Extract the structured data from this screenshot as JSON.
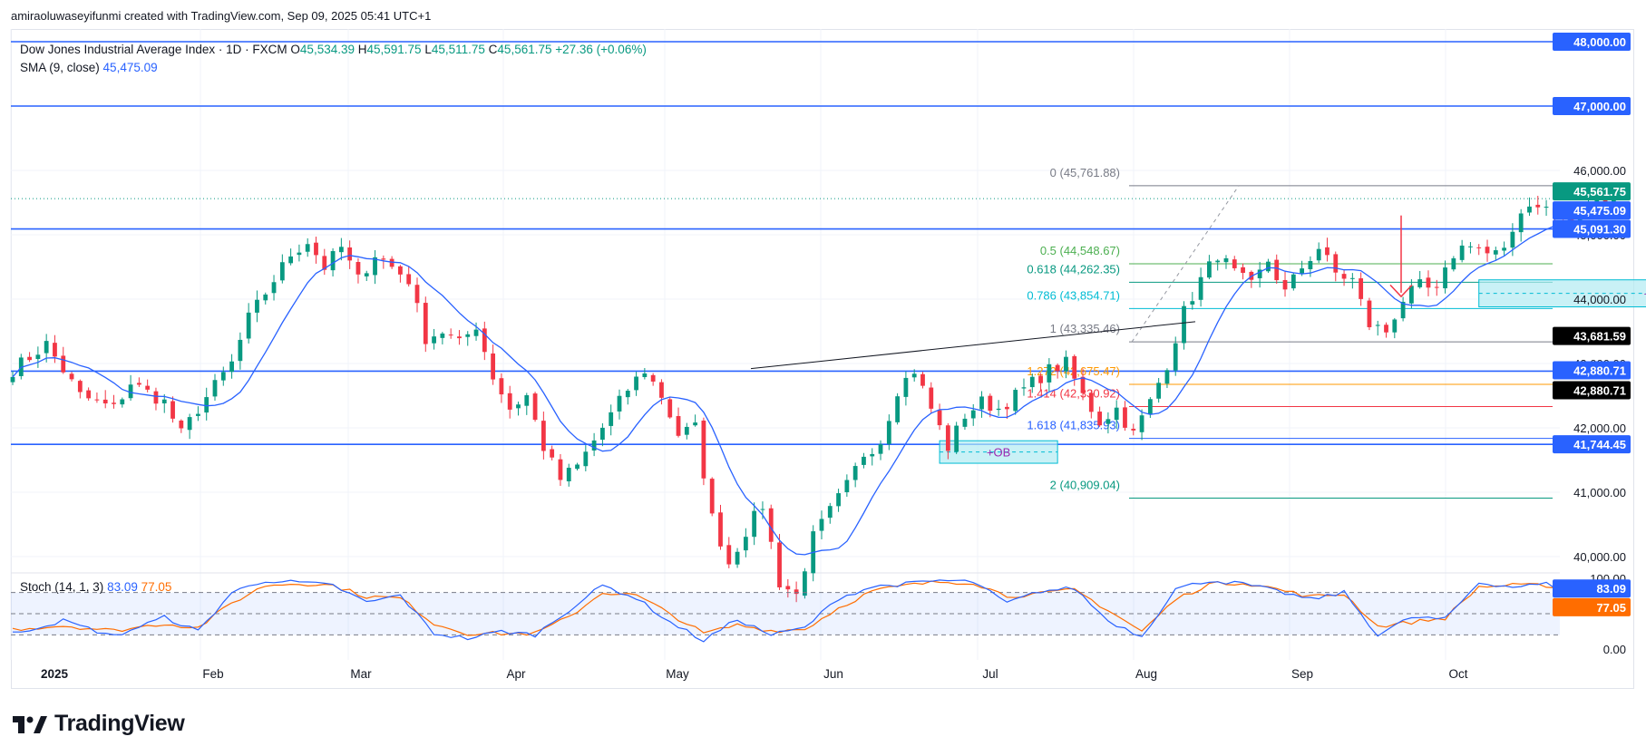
{
  "header": {
    "credit": "amiraoluwaseyifunmi created with TradingView.com, Sep 09, 2025 05:41 UTC+1"
  },
  "legend": {
    "symbol": "Dow Jones Industrial Average Index · 1D · FXCM",
    "open_label": "O",
    "open": "45,534.39",
    "high_label": "H",
    "high": "45,591.75",
    "low_label": "L",
    "low": "45,511.75",
    "close_label": "C",
    "close": "45,561.75",
    "change": "+27.36 (+0.06%)",
    "sma_label": "SMA (9, close)",
    "sma_value": "45,475.09"
  },
  "stoch_legend": {
    "label": "Stoch (14, 1, 3)",
    "k": "83.09",
    "d": "77.05"
  },
  "logo": {
    "text": "TradingView",
    "icon": "tradingview-logo-icon"
  },
  "colors": {
    "up": "#089981",
    "down": "#f23645",
    "sma": "#2962ff",
    "level": "#2962ff",
    "stoch_k": "#2962ff",
    "stoch_d": "#ff6d00",
    "ob_fill": "#b2ebf2",
    "arrow": "#f23645"
  },
  "chart_data": [
    {
      "type": "candlestick",
      "title": "Dow Jones Industrial Average Index · 1D · FXCM",
      "x_ticks": [
        "2025",
        "Feb",
        "Mar",
        "Apr",
        "May",
        "Jun",
        "Jul",
        "Aug",
        "Sep",
        "Oct"
      ],
      "y_ticks": [
        "40,000.00",
        "41,000.00",
        "42,000.00",
        "43,000.00",
        "44,000.00",
        "45,000.00",
        "46,000.00"
      ],
      "ylim": [
        39850,
        48200
      ],
      "grid": true,
      "close_path": [
        [
          0,
          42900
        ],
        [
          4,
          43300
        ],
        [
          8,
          42500
        ],
        [
          12,
          42300
        ],
        [
          14,
          42700
        ],
        [
          18,
          42400
        ],
        [
          20,
          41900
        ],
        [
          22,
          42300
        ],
        [
          26,
          43000
        ],
        [
          28,
          43700
        ],
        [
          31,
          44300
        ],
        [
          33,
          44700
        ],
        [
          35,
          44900
        ],
        [
          37,
          44500
        ],
        [
          39,
          44800
        ],
        [
          41,
          44300
        ],
        [
          43,
          44700
        ],
        [
          45,
          44500
        ],
        [
          47,
          44300
        ],
        [
          49,
          43400
        ],
        [
          51,
          43500
        ],
        [
          53,
          43300
        ],
        [
          55,
          43600
        ],
        [
          57,
          42800
        ],
        [
          59,
          42300
        ],
        [
          61,
          42500
        ],
        [
          63,
          41700
        ],
        [
          65,
          41200
        ],
        [
          67,
          41400
        ],
        [
          69,
          41800
        ],
        [
          71,
          42200
        ],
        [
          73,
          42600
        ],
        [
          75,
          42900
        ],
        [
          77,
          42500
        ],
        [
          79,
          41900
        ],
        [
          81,
          42000
        ],
        [
          83,
          40600
        ],
        [
          85,
          39900
        ],
        [
          87,
          40400
        ],
        [
          89,
          40800
        ],
        [
          91,
          39600
        ],
        [
          93,
          39400
        ],
        [
          95,
          40300
        ],
        [
          97,
          40700
        ],
        [
          99,
          41100
        ],
        [
          101,
          41600
        ],
        [
          103,
          41800
        ],
        [
          105,
          42600
        ],
        [
          107,
          42900
        ],
        [
          109,
          42300
        ],
        [
          111,
          41700
        ],
        [
          113,
          42200
        ],
        [
          115,
          42400
        ],
        [
          117,
          42300
        ],
        [
          119,
          42500
        ],
        [
          121,
          42700
        ],
        [
          123,
          42900
        ],
        [
          125,
          43000
        ],
        [
          127,
          42500
        ],
        [
          129,
          42100
        ],
        [
          131,
          42300
        ],
        [
          133,
          41900
        ],
        [
          135,
          42400
        ],
        [
          137,
          43000
        ],
        [
          139,
          43800
        ],
        [
          141,
          44300
        ],
        [
          143,
          44700
        ],
        [
          145,
          44400
        ],
        [
          147,
          44200
        ],
        [
          149,
          44600
        ],
        [
          151,
          44100
        ],
        [
          153,
          44500
        ],
        [
          155,
          44800
        ],
        [
          157,
          44400
        ],
        [
          159,
          44300
        ],
        [
          161,
          43600
        ],
        [
          163,
          43500
        ],
        [
          165,
          44000
        ],
        [
          167,
          44200
        ],
        [
          169,
          44100
        ],
        [
          171,
          44700
        ],
        [
          173,
          44900
        ],
        [
          175,
          44700
        ],
        [
          177,
          44700
        ],
        [
          179,
          45400
        ],
        [
          181,
          45500
        ],
        [
          183,
          45300
        ],
        [
          185,
          45200
        ],
        [
          187,
          45450
        ],
        [
          189,
          45550
        ],
        [
          190,
          45562
        ]
      ],
      "sma": {
        "label": "SMA (9, close)",
        "last": 45475.09
      },
      "horizontal_levels": [
        {
          "price": 48000.0,
          "label": "48,000.00"
        },
        {
          "price": 47000.0,
          "label": "47,000.00"
        },
        {
          "price": 45091.3,
          "label": "45,091.30"
        },
        {
          "price": 42880.71,
          "label": "42,880.71"
        },
        {
          "price": 41744.45,
          "label": "41,744.45"
        }
      ],
      "price_tags": [
        {
          "price": 45561.75,
          "label": "45,561.75",
          "color": "#089981"
        },
        {
          "price": 45475.09,
          "label": "45,475.09",
          "color": "#2962ff"
        },
        {
          "price": 43681.59,
          "label": "43,681.59",
          "color": "#000000"
        },
        {
          "price": 42880.71,
          "label": "42,880.71",
          "color": "#000000"
        }
      ],
      "fib_levels": [
        {
          "ratio": "0",
          "price": 45761.88,
          "label": "0 (45,761.88)",
          "color": "#787b86"
        },
        {
          "ratio": "0.5",
          "price": 44548.67,
          "label": "0.5 (44,548.67)",
          "color": "#4caf50"
        },
        {
          "ratio": "0.618",
          "price": 44262.35,
          "label": "0.618 (44,262.35)",
          "color": "#089981"
        },
        {
          "ratio": "0.786",
          "price": 43854.71,
          "label": "0.786 (43,854.71)",
          "color": "#00bcd4"
        },
        {
          "ratio": "1",
          "price": 43335.46,
          "label": "1 (43,335.46)",
          "color": "#787b86"
        },
        {
          "ratio": "1.272",
          "price": 42675.47,
          "label": "1.272 (42,675.47)",
          "color": "#ff9800"
        },
        {
          "ratio": "1.414",
          "price": 42330.92,
          "label": "1.414 (42,330.92)",
          "color": "#f23645"
        },
        {
          "ratio": "1.618",
          "price": 41835.93,
          "label": "1.618 (41,835.93)",
          "color": "#2962ff"
        },
        {
          "ratio": "2",
          "price": 40909.04,
          "label": "2 (40,909.04)",
          "color": "#089981"
        }
      ],
      "order_blocks": [
        {
          "label": "+OB",
          "x_from": 110,
          "x_to": 124,
          "price_top": 41800,
          "price_bottom": 41450
        },
        {
          "label": "+OB",
          "x_from": 174,
          "x_to": 216,
          "price_top": 44300,
          "price_bottom": 43880
        }
      ]
    },
    {
      "type": "line",
      "title": "Stoch (14, 1, 3)",
      "y_ticks": [
        "100.00",
        "0.00"
      ],
      "ylim": [
        0,
        100
      ],
      "bands": [
        20,
        50,
        80
      ],
      "series": [
        {
          "name": "%K",
          "color": "#2962ff",
          "last": 83.09
        },
        {
          "name": "%D",
          "color": "#ff6d00",
          "last": 77.05
        }
      ],
      "k_path": [
        [
          0,
          22
        ],
        [
          6,
          40
        ],
        [
          12,
          18
        ],
        [
          18,
          45
        ],
        [
          22,
          25
        ],
        [
          26,
          80
        ],
        [
          30,
          97
        ],
        [
          34,
          94
        ],
        [
          38,
          90
        ],
        [
          42,
          66
        ],
        [
          46,
          76
        ],
        [
          50,
          22
        ],
        [
          54,
          15
        ],
        [
          58,
          25
        ],
        [
          62,
          20
        ],
        [
          66,
          55
        ],
        [
          70,
          90
        ],
        [
          74,
          72
        ],
        [
          78,
          38
        ],
        [
          82,
          12
        ],
        [
          86,
          42
        ],
        [
          90,
          20
        ],
        [
          94,
          30
        ],
        [
          98,
          72
        ],
        [
          102,
          88
        ],
        [
          106,
          92
        ],
        [
          110,
          97
        ],
        [
          114,
          95
        ],
        [
          118,
          65
        ],
        [
          122,
          82
        ],
        [
          126,
          86
        ],
        [
          130,
          40
        ],
        [
          134,
          18
        ],
        [
          138,
          85
        ],
        [
          142,
          97
        ],
        [
          146,
          92
        ],
        [
          150,
          82
        ],
        [
          154,
          70
        ],
        [
          158,
          80
        ],
        [
          162,
          20
        ],
        [
          166,
          45
        ],
        [
          170,
          42
        ],
        [
          174,
          94
        ],
        [
          178,
          88
        ],
        [
          182,
          92
        ],
        [
          186,
          78
        ],
        [
          188,
          80
        ],
        [
          190,
          83
        ]
      ],
      "d_path": [
        [
          0,
          28
        ],
        [
          6,
          33
        ],
        [
          12,
          26
        ],
        [
          18,
          36
        ],
        [
          22,
          30
        ],
        [
          26,
          65
        ],
        [
          30,
          90
        ],
        [
          34,
          93
        ],
        [
          38,
          90
        ],
        [
          42,
          74
        ],
        [
          46,
          72
        ],
        [
          50,
          36
        ],
        [
          54,
          22
        ],
        [
          58,
          22
        ],
        [
          62,
          22
        ],
        [
          66,
          45
        ],
        [
          70,
          80
        ],
        [
          74,
          76
        ],
        [
          78,
          50
        ],
        [
          82,
          22
        ],
        [
          86,
          34
        ],
        [
          90,
          26
        ],
        [
          94,
          28
        ],
        [
          98,
          58
        ],
        [
          102,
          82
        ],
        [
          106,
          90
        ],
        [
          110,
          95
        ],
        [
          114,
          94
        ],
        [
          118,
          75
        ],
        [
          122,
          78
        ],
        [
          126,
          84
        ],
        [
          130,
          55
        ],
        [
          134,
          25
        ],
        [
          138,
          70
        ],
        [
          142,
          92
        ],
        [
          146,
          94
        ],
        [
          150,
          85
        ],
        [
          154,
          74
        ],
        [
          158,
          78
        ],
        [
          162,
          32
        ],
        [
          166,
          38
        ],
        [
          170,
          44
        ],
        [
          174,
          88
        ],
        [
          178,
          90
        ],
        [
          182,
          90
        ],
        [
          186,
          82
        ],
        [
          188,
          78
        ],
        [
          190,
          77
        ]
      ]
    }
  ]
}
